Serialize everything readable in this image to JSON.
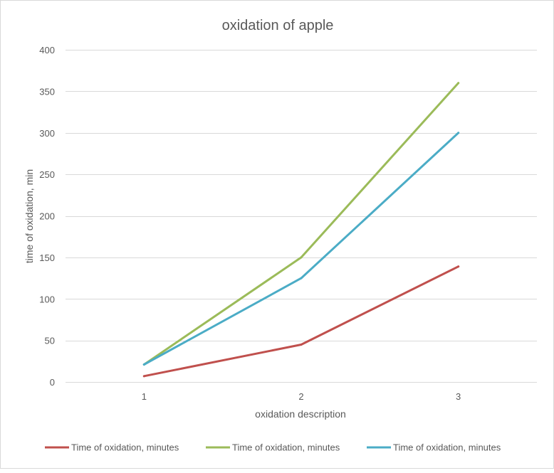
{
  "chart_data": {
    "type": "line",
    "title": "oxidation of apple",
    "xlabel": "oxidation description",
    "ylabel": "time of oxidation, min",
    "categories": [
      "1",
      "2",
      "3"
    ],
    "ylim": [
      0,
      400
    ],
    "yticks": [
      0,
      50,
      100,
      150,
      200,
      250,
      300,
      350,
      400
    ],
    "grid": true,
    "legend_position": "bottom",
    "series": [
      {
        "name": "Time of oxidation, minutes",
        "color": "#c0504d",
        "values": [
          7,
          45,
          139
        ]
      },
      {
        "name": "Time of oxidation, minutes",
        "color": "#9bbb59",
        "values": [
          21,
          150,
          360
        ]
      },
      {
        "name": "Time of oxidation, minutes",
        "color": "#4bacc6",
        "values": [
          21,
          125,
          300
        ]
      }
    ]
  }
}
